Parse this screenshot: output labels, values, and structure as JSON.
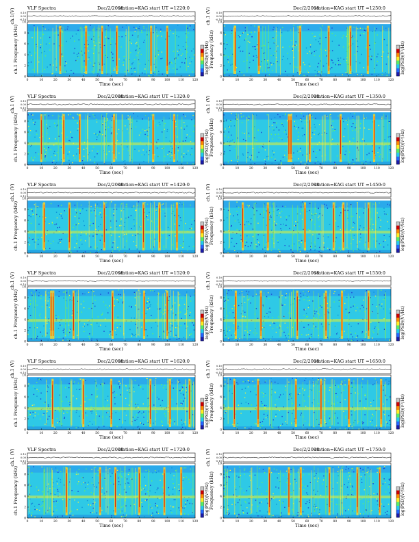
{
  "colors": {
    "background": "#2ec9e6",
    "colormap": [
      "#1a1aa8",
      "#2266ff",
      "#22ccee",
      "#55ee66",
      "#ffee22",
      "#ff8800",
      "#cc0000",
      "#c8c8c8"
    ]
  },
  "chart_data": [
    {
      "type": "heatmap",
      "header_left": "VLF Spectra",
      "header_mid": "Dec/2/2008",
      "header_right": "station=KAG   start  UT  =1220:0",
      "ylabel_top": "ch.1(V)",
      "ylabel_spec": "ch.1 Frequency  (kHz)",
      "xlabel": "Time  (sec)",
      "colorbar_label": "log(PSD)(V²/Hz)",
      "y_ticks_top": [
        "0.10",
        "0.00",
        "-0.10"
      ],
      "y_ticks": [
        "0",
        "2",
        "4",
        "6",
        "8",
        "10"
      ],
      "x_ticks": [
        "0",
        "10",
        "20",
        "30",
        "40",
        "50",
        "60",
        "70",
        "80",
        "90",
        "100",
        "110",
        "120"
      ],
      "xlim": [
        0,
        120
      ],
      "ylim": [
        0,
        10
      ],
      "bursts": [
        23.5,
        42,
        53.5,
        64,
        88.5,
        100
      ],
      "horizontal_band": false
    },
    {
      "type": "heatmap",
      "header_left": "",
      "header_mid": "Dec/2/2008",
      "header_right": "station=KAG   start  UT  =1250:0",
      "ylabel_top": "ch.1 (V)",
      "ylabel_spec": "Frequency  (kHz)",
      "xlabel": "Time  (sec)",
      "colorbar_label": "log(PSD)(V²/Hz)",
      "y_ticks_top": [
        "0.10",
        "0.00",
        "-0.10"
      ],
      "y_ticks": [
        "0",
        "2",
        "4",
        "6",
        "8",
        "10"
      ],
      "x_ticks": [
        "0",
        "10",
        "20",
        "30",
        "40",
        "50",
        "60",
        "70",
        "80",
        "90",
        "100",
        "110",
        "120"
      ],
      "xlim": [
        0,
        120
      ],
      "ylim": [
        0,
        10
      ],
      "bursts": [
        8.5,
        25.5,
        55,
        75.5,
        91,
        103.5
      ],
      "horizontal_band": false
    },
    {
      "type": "heatmap",
      "header_left": "VLF Spectra",
      "header_mid": "Dec/2/2008",
      "header_right": "station=KAG   start  UT  =1320:0",
      "ylabel_top": "ch.1 (V)",
      "ylabel_spec": "ch.1 Frequency  (kHz)",
      "xlabel": "Time  (sec)",
      "colorbar_label": "log(PSD)(V²/Hz)",
      "y_ticks_top": [
        "0.10",
        "0.00",
        "-0.10"
      ],
      "y_ticks": [
        "0",
        "2",
        "4",
        "6",
        "8",
        "10"
      ],
      "x_ticks": [
        "0",
        "10",
        "20",
        "30",
        "40",
        "50",
        "60",
        "70",
        "80",
        "90",
        "100",
        "110",
        "120"
      ],
      "xlim": [
        0,
        120
      ],
      "ylim": [
        0,
        10
      ],
      "bursts": [
        10,
        26,
        37.5,
        62,
        90,
        105
      ],
      "horizontal_band": true
    },
    {
      "type": "heatmap",
      "header_left": "",
      "header_mid": "Dec/2/2008",
      "header_right": "station=KAG   start  UT  =1350:0",
      "ylabel_top": "ch.1 (V)",
      "ylabel_spec": "Frequency  (kHz)",
      "xlabel": "Time  (sec)",
      "colorbar_label": "log(PSD)(V²/Hz)",
      "y_ticks_top": [
        "0.10",
        "0.00",
        "-0.10"
      ],
      "y_ticks": [
        "0",
        "2",
        "4",
        "6",
        "8",
        "10"
      ],
      "x_ticks": [
        "0",
        "10",
        "20",
        "30",
        "40",
        "50",
        "60",
        "70",
        "80",
        "90",
        "100",
        "110",
        "120"
      ],
      "xlim": [
        0,
        120
      ],
      "ylim": [
        0,
        10
      ],
      "bursts": [
        47,
        48.5,
        62,
        84,
        108
      ],
      "horizontal_band": true
    },
    {
      "type": "heatmap",
      "header_left": "VLF Spectra",
      "header_mid": "Dec/2/2008",
      "header_right": "station=KAG   start  UT  =1420:0",
      "ylabel_top": "ch.1 (V)",
      "ylabel_spec": "ch.1 Frequency  (kHz)",
      "xlabel": "Time  (sec)",
      "colorbar_label": "log(PSD)(V²/Hz)",
      "y_ticks_top": [
        "0.10",
        "0.00",
        "-0.10"
      ],
      "y_ticks": [
        "0",
        "2",
        "4",
        "6",
        "8",
        "10"
      ],
      "x_ticks": [
        "0",
        "10",
        "20",
        "30",
        "40",
        "50",
        "60",
        "70",
        "80",
        "90",
        "100",
        "110",
        "120"
      ],
      "xlim": [
        0,
        120
      ],
      "ylim": [
        0,
        10
      ],
      "bursts": [
        12,
        30,
        55,
        83,
        94.5,
        107
      ],
      "horizontal_band": true
    },
    {
      "type": "heatmap",
      "header_left": "",
      "header_mid": "Dec/2/2008",
      "header_right": "station=KAG   start  UT  =1450:0",
      "ylabel_top": "ch.1 (V)",
      "ylabel_spec": "Frequency  (kHz)",
      "xlabel": "Time  (sec)",
      "colorbar_label": "log(PSD)(V²/Hz)",
      "y_ticks_top": [
        "0.10",
        "0.00",
        "-0.10"
      ],
      "y_ticks": [
        "0",
        "2",
        "4",
        "6",
        "8",
        "10"
      ],
      "x_ticks": [
        "0",
        "10",
        "20",
        "30",
        "40",
        "50",
        "60",
        "70",
        "80",
        "90",
        "100",
        "110",
        "120"
      ],
      "xlim": [
        0,
        120
      ],
      "ylim": [
        0,
        10
      ],
      "bursts": [
        14,
        32,
        58.5,
        79,
        86,
        104
      ],
      "horizontal_band": true
    },
    {
      "type": "heatmap",
      "header_left": "VLF Spectra",
      "header_mid": "Dec/2/2008",
      "header_right": "station=KAG   start  UT  =1520:0",
      "ylabel_top": "ch.1 (V)",
      "ylabel_spec": "ch.1 Frequency  (kHz)",
      "xlabel": "Time  (sec)",
      "colorbar_label": "log(PSD)(V²/Hz)",
      "y_ticks_top": [
        "0.10",
        "0.00",
        "-0.10"
      ],
      "y_ticks": [
        "0",
        "2",
        "4",
        "6",
        "8",
        "10"
      ],
      "x_ticks": [
        "0",
        "10",
        "20",
        "30",
        "40",
        "50",
        "60",
        "70",
        "80",
        "90",
        "100",
        "110",
        "120"
      ],
      "xlim": [
        0,
        120
      ],
      "ylim": [
        0,
        10
      ],
      "bursts": [
        17,
        18.5,
        33,
        61,
        83.5,
        100
      ],
      "horizontal_band": true
    },
    {
      "type": "heatmap",
      "header_left": "",
      "header_mid": "Dec/2/2008",
      "header_right": "station=KAG   start  UT  =1550:0",
      "ylabel_top": "ch.1 (V)",
      "ylabel_spec": "Frequency  (kHz)",
      "xlabel": "Time  (sec)",
      "colorbar_label": "log(PSD)(V²/Hz)",
      "y_ticks_top": [
        "0.10",
        "0.00",
        "-0.10"
      ],
      "y_ticks": [
        "0",
        "2",
        "4",
        "6",
        "8",
        "10"
      ],
      "x_ticks": [
        "0",
        "10",
        "20",
        "30",
        "40",
        "50",
        "60",
        "70",
        "80",
        "90",
        "100",
        "110",
        "120"
      ],
      "xlim": [
        0,
        120
      ],
      "ylim": [
        0,
        10
      ],
      "bursts": [
        9,
        27,
        53,
        73.5,
        85,
        104
      ],
      "horizontal_band": true
    },
    {
      "type": "heatmap",
      "header_left": "VLF Spectra",
      "header_mid": "Dec/2/2008",
      "header_right": "station=KAG   start  UT  =1620:0",
      "ylabel_top": "ch.1 (V)",
      "ylabel_spec": "ch.1 Frequency  (kHz)",
      "xlabel": "Time  (sec)",
      "colorbar_label": "log(PSD)(V²/Hz)",
      "y_ticks_top": [
        "0.10",
        "0.00",
        "-0.10"
      ],
      "y_ticks": [
        "0",
        "2",
        "4",
        "6",
        "8",
        "10"
      ],
      "x_ticks": [
        "0",
        "10",
        "20",
        "30",
        "40",
        "50",
        "60",
        "70",
        "80",
        "90",
        "100",
        "110",
        "120"
      ],
      "xlim": [
        0,
        120
      ],
      "ylim": [
        0,
        10
      ],
      "bursts": [
        18,
        40,
        60,
        88,
        102,
        116
      ],
      "horizontal_band": true
    },
    {
      "type": "heatmap",
      "header_left": "",
      "header_mid": "Dec/2/2008",
      "header_right": "station=KAG   start  UT  =1650:0",
      "ylabel_top": "ch.1 (V)",
      "ylabel_spec": "Frequency  (kHz)",
      "xlabel": "Time  (sec)",
      "colorbar_label": "log(PSD)(V²/Hz)",
      "y_ticks_top": [
        "0.10",
        "0.00",
        "-0.10"
      ],
      "y_ticks": [
        "0",
        "2",
        "4",
        "6",
        "8",
        "10"
      ],
      "x_ticks": [
        "0",
        "10",
        "20",
        "30",
        "40",
        "50",
        "60",
        "70",
        "80",
        "90",
        "100",
        "110",
        "120"
      ],
      "xlim": [
        0,
        120
      ],
      "ylim": [
        0,
        10
      ],
      "bursts": [
        8,
        25,
        52,
        70,
        90,
        113
      ],
      "horizontal_band": true
    },
    {
      "type": "heatmap",
      "header_left": "VLF Spectra",
      "header_mid": "Dec/2/2008",
      "header_right": "station=KAG   start  UT  =1720:0",
      "ylabel_top": "ch.1 (V)",
      "ylabel_spec": "ch.1 Frequency  (kHz)",
      "xlabel": "Time  (sec)",
      "colorbar_label": "log(PSD)(V²/Hz)",
      "y_ticks_top": [
        "0.10",
        "0.00",
        "-0.10"
      ],
      "y_ticks": [
        "0",
        "2",
        "4",
        "6",
        "8",
        "10"
      ],
      "x_ticks": [
        "0",
        "10",
        "20",
        "30",
        "40",
        "50",
        "60",
        "70",
        "80",
        "90",
        "100",
        "110",
        "120"
      ],
      "xlim": [
        0,
        120
      ],
      "ylim": [
        0,
        10
      ],
      "bursts": [
        28,
        52,
        63,
        80,
        98,
        110
      ],
      "horizontal_band": true
    },
    {
      "type": "heatmap",
      "header_left": "",
      "header_mid": "Dec/2/2008",
      "header_right": "station=KAG   start  UT  =1750:0",
      "ylabel_top": "ch.1 (V)",
      "ylabel_spec": "Frequency  (kHz)",
      "xlabel": "Time  (sec)",
      "colorbar_label": "log(PSD)(V²/Hz)",
      "y_ticks_top": [
        "0.10",
        "0.00",
        "-0.10"
      ],
      "y_ticks": [
        "0",
        "2",
        "4",
        "6",
        "8",
        "10"
      ],
      "x_ticks": [
        "0",
        "10",
        "20",
        "30",
        "40",
        "50",
        "60",
        "70",
        "80",
        "90",
        "100",
        "110",
        "120"
      ],
      "xlim": [
        0,
        120
      ],
      "ylim": [
        0,
        10
      ],
      "bursts": [
        33,
        47,
        55.5,
        76,
        96,
        112
      ],
      "horizontal_band": true
    }
  ]
}
